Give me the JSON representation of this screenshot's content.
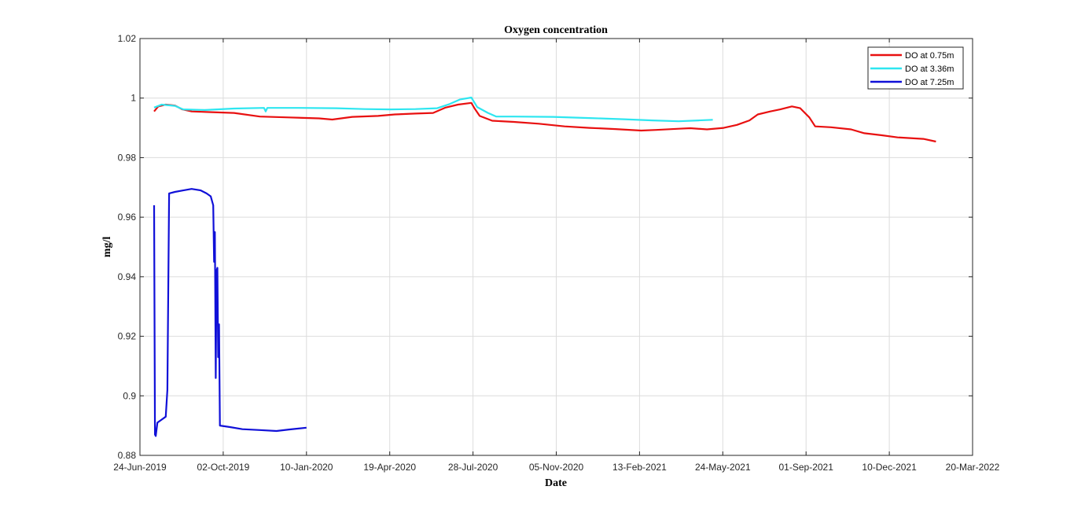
{
  "colors": {
    "do_075": "#e81010",
    "do_336": "#2ee6f0",
    "do_725": "#1010d8",
    "grid": "#dcdcdc",
    "axes": "#262626"
  },
  "chart_data": {
    "type": "line",
    "title": "Oxygen concentration",
    "xlabel": "Date",
    "ylabel": "mg/l",
    "ylim": [
      0.88,
      1.02
    ],
    "xlim": [
      "2019-06-24",
      "2022-03-20"
    ],
    "xticks": [
      "24-Jun-2019",
      "02-Oct-2019",
      "10-Jan-2020",
      "19-Apr-2020",
      "28-Jul-2020",
      "05-Nov-2020",
      "13-Feb-2021",
      "24-May-2021",
      "01-Sep-2021",
      "10-Dec-2021",
      "20-Mar-2022"
    ],
    "yticks": [
      "0.88",
      "0.9",
      "0.92",
      "0.94",
      "0.96",
      "0.98",
      "1",
      "1.02"
    ],
    "grid": true,
    "legend_position": "top-right",
    "series": [
      {
        "name": "DO at 0.75m",
        "color_key": "do_075",
        "points": [
          [
            "2019-07-11",
            0.9955
          ],
          [
            "2019-07-16",
            0.9972
          ],
          [
            "2019-07-25",
            0.9978
          ],
          [
            "2019-08-05",
            0.9975
          ],
          [
            "2019-08-14",
            0.9962
          ],
          [
            "2019-08-25",
            0.9955
          ],
          [
            "2019-09-15",
            0.9953
          ],
          [
            "2019-10-15",
            0.995
          ],
          [
            "2019-11-15",
            0.9938
          ],
          [
            "2019-12-20",
            0.9935
          ],
          [
            "2020-01-25",
            0.9932
          ],
          [
            "2020-02-10",
            0.9928
          ],
          [
            "2020-03-05",
            0.9937
          ],
          [
            "2020-04-05",
            0.994
          ],
          [
            "2020-04-25",
            0.9945
          ],
          [
            "2020-05-20",
            0.9948
          ],
          [
            "2020-06-10",
            0.995
          ],
          [
            "2020-06-25",
            0.9968
          ],
          [
            "2020-07-10",
            0.9978
          ],
          [
            "2020-07-26",
            0.9984
          ],
          [
            "2020-07-30",
            0.9965
          ],
          [
            "2020-08-05",
            0.994
          ],
          [
            "2020-08-20",
            0.9924
          ],
          [
            "2020-09-15",
            0.992
          ],
          [
            "2020-10-15",
            0.9914
          ],
          [
            "2020-11-15",
            0.9905
          ],
          [
            "2020-12-15",
            0.99
          ],
          [
            "2021-01-15",
            0.9896
          ],
          [
            "2021-02-15",
            0.9891
          ],
          [
            "2021-03-05",
            0.9893
          ],
          [
            "2021-04-01",
            0.9897
          ],
          [
            "2021-04-15",
            0.9899
          ],
          [
            "2021-05-05",
            0.9895
          ],
          [
            "2021-05-25",
            0.99
          ],
          [
            "2021-06-10",
            0.991
          ],
          [
            "2021-06-25",
            0.9925
          ],
          [
            "2021-07-05",
            0.9945
          ],
          [
            "2021-07-20",
            0.9955
          ],
          [
            "2021-08-01",
            0.9962
          ],
          [
            "2021-08-15",
            0.9972
          ],
          [
            "2021-08-25",
            0.9966
          ],
          [
            "2021-09-05",
            0.9935
          ],
          [
            "2021-09-12",
            0.9905
          ],
          [
            "2021-10-01",
            0.9902
          ],
          [
            "2021-10-25",
            0.9895
          ],
          [
            "2021-11-10",
            0.9882
          ],
          [
            "2021-12-01",
            0.9875
          ],
          [
            "2021-12-20",
            0.9868
          ],
          [
            "2022-01-20",
            0.9863
          ],
          [
            "2022-02-04",
            0.9854
          ]
        ]
      },
      {
        "name": "DO at 3.36m",
        "color_key": "do_336",
        "points": [
          [
            "2019-07-11",
            0.9968
          ],
          [
            "2019-07-20",
            0.9978
          ],
          [
            "2019-08-05",
            0.9974
          ],
          [
            "2019-08-15",
            0.9962
          ],
          [
            "2019-09-10",
            0.996
          ],
          [
            "2019-10-15",
            0.9965
          ],
          [
            "2019-11-20",
            0.9967
          ],
          [
            "2019-11-22",
            0.9955
          ],
          [
            "2019-11-24",
            0.9967
          ],
          [
            "2020-01-01",
            0.9967
          ],
          [
            "2020-02-15",
            0.9966
          ],
          [
            "2020-03-20",
            0.9963
          ],
          [
            "2020-04-20",
            0.9962
          ],
          [
            "2020-05-20",
            0.9963
          ],
          [
            "2020-06-15",
            0.9966
          ],
          [
            "2020-06-30",
            0.998
          ],
          [
            "2020-07-12",
            0.9995
          ],
          [
            "2020-07-26",
            1.0002
          ],
          [
            "2020-08-02",
            0.997
          ],
          [
            "2020-08-15",
            0.995
          ],
          [
            "2020-08-25",
            0.9938
          ],
          [
            "2020-09-15",
            0.9938
          ],
          [
            "2020-11-01",
            0.9937
          ],
          [
            "2020-12-15",
            0.9933
          ],
          [
            "2021-01-25",
            0.9929
          ],
          [
            "2021-03-01",
            0.9925
          ],
          [
            "2021-04-01",
            0.9922
          ],
          [
            "2021-04-25",
            0.9925
          ],
          [
            "2021-05-12",
            0.9927
          ]
        ]
      },
      {
        "name": "DO at 7.25m",
        "color_key": "do_725",
        "points": [
          [
            "2019-07-11",
            0.964
          ],
          [
            "2019-07-12",
            0.887
          ],
          [
            "2019-07-13",
            0.8865
          ],
          [
            "2019-07-15",
            0.891
          ],
          [
            "2019-07-20",
            0.892
          ],
          [
            "2019-07-25",
            0.893
          ],
          [
            "2019-07-27",
            0.902
          ],
          [
            "2019-07-29",
            0.968
          ],
          [
            "2019-08-05",
            0.9685
          ],
          [
            "2019-08-15",
            0.969
          ],
          [
            "2019-08-25",
            0.9695
          ],
          [
            "2019-09-05",
            0.969
          ],
          [
            "2019-09-12",
            0.968
          ],
          [
            "2019-09-17",
            0.967
          ],
          [
            "2019-09-20",
            0.964
          ],
          [
            "2019-09-21",
            0.945
          ],
          [
            "2019-09-22",
            0.955
          ],
          [
            "2019-09-23",
            0.906
          ],
          [
            "2019-09-24",
            0.942
          ],
          [
            "2019-09-25",
            0.943
          ],
          [
            "2019-09-26",
            0.913
          ],
          [
            "2019-09-27",
            0.924
          ],
          [
            "2019-09-28",
            0.89
          ],
          [
            "2019-10-10",
            0.8895
          ],
          [
            "2019-10-25",
            0.8888
          ],
          [
            "2019-11-15",
            0.8885
          ],
          [
            "2019-12-05",
            0.8882
          ],
          [
            "2019-12-20",
            0.8887
          ],
          [
            "2020-01-10",
            0.8893
          ]
        ]
      }
    ]
  }
}
